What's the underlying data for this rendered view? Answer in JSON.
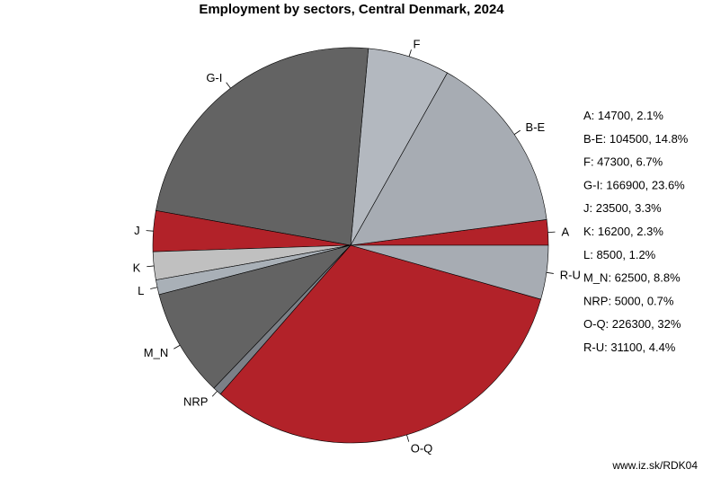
{
  "chart_data": {
    "type": "pie",
    "title": "Employment by sectors, Central Denmark, 2024",
    "start_angle_deg": 0,
    "direction": "counterclockwise",
    "slices": [
      {
        "label": "A",
        "value": 14700,
        "pct": "2.1%",
        "color": "#b22229"
      },
      {
        "label": "B-E",
        "value": 104500,
        "pct": "14.8%",
        "color": "#a7acb3"
      },
      {
        "label": "F",
        "value": 47300,
        "pct": "6.7%",
        "color": "#b3b8bf"
      },
      {
        "label": "G-I",
        "value": 166900,
        "pct": "23.6%",
        "color": "#636363"
      },
      {
        "label": "J",
        "value": 23500,
        "pct": "3.3%",
        "color": "#b22229"
      },
      {
        "label": "K",
        "value": 16200,
        "pct": "2.3%",
        "color": "#c0c0c0"
      },
      {
        "label": "L",
        "value": 8500,
        "pct": "1.2%",
        "color": "#a9b0b7"
      },
      {
        "label": "M_N",
        "value": 62500,
        "pct": "8.8%",
        "color": "#636363"
      },
      {
        "label": "NRP",
        "value": 5000,
        "pct": "0.7%",
        "color": "#7b8087"
      },
      {
        "label": "O-Q",
        "value": 226300,
        "pct": "32%",
        "color": "#b22229"
      },
      {
        "label": "R-U",
        "value": 31100,
        "pct": "4.4%",
        "color": "#a7acb3"
      }
    ],
    "legend_placement": "right"
  },
  "source": "www.iz.sk/RDK04"
}
